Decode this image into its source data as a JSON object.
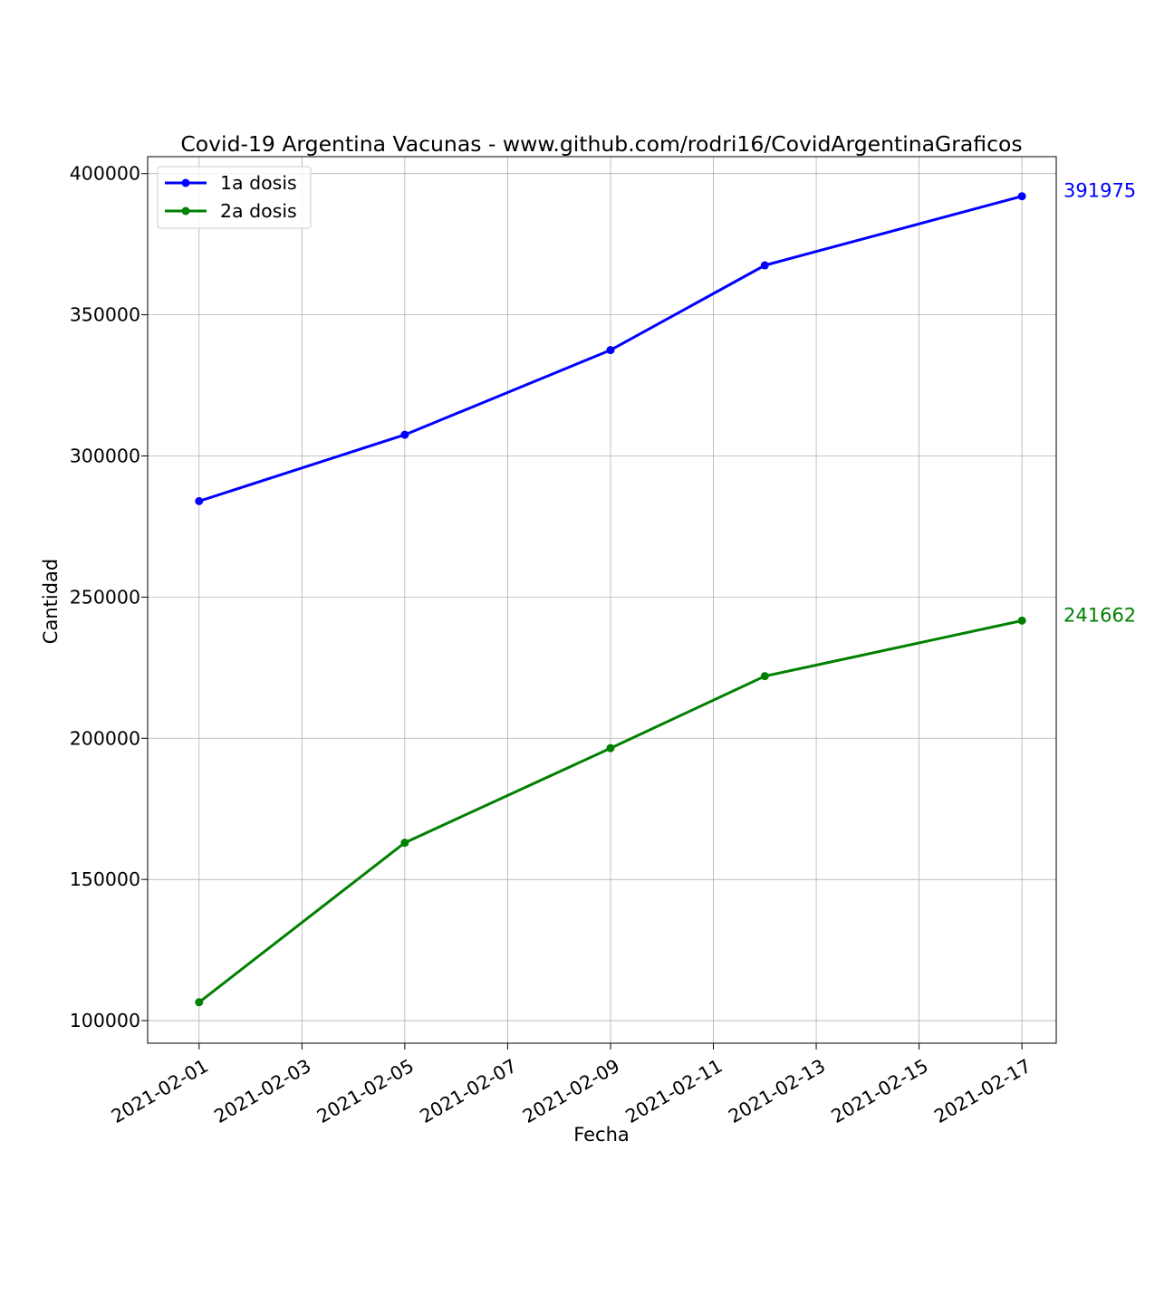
{
  "chart_data": {
    "type": "line",
    "title": "Covid-19 Argentina Vacunas - www.github.com/rodri16/CovidArgentinaGraficos",
    "xlabel": "Fecha",
    "ylabel": "Cantidad",
    "x_type": "date",
    "xlim": [
      "2021-01-31",
      "2021-02-17T16:00"
    ],
    "ylim": [
      92000,
      406000
    ],
    "x_ticks": [
      "2021-02-01",
      "2021-02-03",
      "2021-02-05",
      "2021-02-07",
      "2021-02-09",
      "2021-02-11",
      "2021-02-13",
      "2021-02-15",
      "2021-02-17"
    ],
    "y_ticks": [
      100000,
      150000,
      200000,
      250000,
      300000,
      350000,
      400000
    ],
    "grid": true,
    "legend_position": "upper-left",
    "series": [
      {
        "name": "1a dosis",
        "color": "#0000ff",
        "x": [
          "2021-02-01",
          "2021-02-05",
          "2021-02-09",
          "2021-02-12",
          "2021-02-17"
        ],
        "y": [
          284000,
          307500,
          337500,
          367500,
          391975
        ],
        "end_label": "391975"
      },
      {
        "name": "2a dosis",
        "color": "#008000",
        "x": [
          "2021-02-01",
          "2021-02-05",
          "2021-02-09",
          "2021-02-12",
          "2021-02-17"
        ],
        "y": [
          106500,
          163000,
          196500,
          222000,
          241662
        ],
        "end_label": "241662"
      }
    ]
  }
}
